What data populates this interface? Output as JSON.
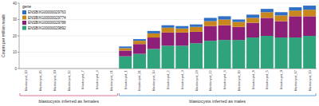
{
  "chart_data": {
    "type": "bar",
    "stacked": true,
    "y_label": "Counts per million reads",
    "categories": [
      "blastocyst_10",
      "blastocyst_15",
      "blastocyst_19",
      "blastocyst_12",
      "blastocyst_7",
      "blastocyst_4",
      "blastocyst_21",
      "blastocyst_1",
      "blastocyst_11",
      "blastocyst_14",
      "blastocyst_2",
      "blastocyst_3",
      "blastocyst_20",
      "blastocyst_22",
      "blastocyst_6",
      "blastocyst_16",
      "blastocyst_8",
      "blastocyst_5",
      "blastocyst_9",
      "blastocyst_17",
      "blastocyst_13"
    ],
    "series": [
      {
        "name": "ENSBIXG00000029892",
        "color": "#2fa37b",
        "values": [
          0,
          0,
          0,
          0,
          0,
          0,
          0,
          7.5,
          9,
          12,
          14,
          14,
          15.5,
          17,
          17.5,
          17.5,
          19,
          20,
          19,
          19,
          20
        ]
      },
      {
        "name": "ENSBIXG00000029788",
        "color": "#8e1f78",
        "values": [
          0,
          0,
          0,
          0,
          0,
          0,
          0,
          3.5,
          6,
          7,
          8,
          8,
          7,
          9,
          9,
          8,
          9,
          11,
          10,
          13,
          12
        ]
      },
      {
        "name": "ENSBIXG00000029774",
        "color": "#c9861c",
        "values": [
          0,
          0,
          0,
          0,
          0,
          0,
          0,
          1.5,
          2,
          2.5,
          3,
          2.5,
          3,
          3,
          3.5,
          3,
          3,
          3.5,
          3.5,
          3.5,
          4
        ]
      },
      {
        "name": "ENSBIXG00000029763",
        "color": "#2f6fc4",
        "values": [
          0,
          0,
          0,
          0,
          0,
          0,
          0,
          1,
          1,
          1.5,
          1.5,
          1.5,
          1.5,
          2,
          2,
          1.5,
          2,
          2,
          2,
          2,
          2.5
        ]
      }
    ],
    "ylim": [
      0,
      40
    ],
    "yticks": [
      0,
      10,
      20,
      30,
      40
    ],
    "grid": true,
    "legend": "top-left",
    "legend_title": "gene",
    "annotations": [
      {
        "text": "blastocysts inferred as females",
        "from": 0,
        "to": 6,
        "color": "#d9506f"
      },
      {
        "text": "blastocysts inferred as males",
        "from": 7,
        "to": 20,
        "color": "#3b8fd6"
      }
    ]
  }
}
